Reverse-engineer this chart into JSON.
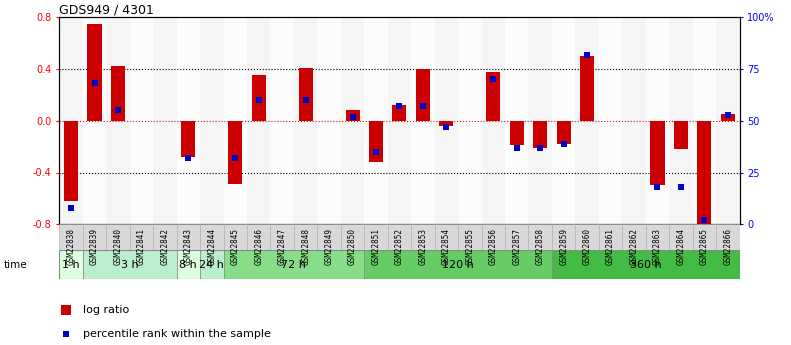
{
  "title": "GDS949 / 4301",
  "samples": [
    "GSM22838",
    "GSM22839",
    "GSM22840",
    "GSM22841",
    "GSM22842",
    "GSM22843",
    "GSM22844",
    "GSM22845",
    "GSM22846",
    "GSM22847",
    "GSM22848",
    "GSM22849",
    "GSM22850",
    "GSM22851",
    "GSM22852",
    "GSM22853",
    "GSM22854",
    "GSM22855",
    "GSM22856",
    "GSM22857",
    "GSM22858",
    "GSM22859",
    "GSM22860",
    "GSM22861",
    "GSM22862",
    "GSM22863",
    "GSM22864",
    "GSM22865",
    "GSM22866"
  ],
  "log_ratio": [
    -0.62,
    0.75,
    0.42,
    0.0,
    0.0,
    -0.28,
    0.0,
    -0.49,
    0.35,
    0.0,
    0.41,
    0.0,
    0.08,
    -0.32,
    0.12,
    0.4,
    -0.04,
    0.0,
    0.38,
    -0.19,
    -0.21,
    -0.18,
    0.5,
    0.0,
    0.0,
    -0.5,
    -0.22,
    -0.8,
    0.05
  ],
  "percentile_rank": [
    8,
    68,
    55,
    0,
    0,
    32,
    0,
    32,
    60,
    0,
    60,
    0,
    52,
    35,
    57,
    57,
    47,
    0,
    70,
    37,
    37,
    39,
    82,
    0,
    0,
    18,
    18,
    2,
    53
  ],
  "time_groups": [
    {
      "label": "1 h",
      "start": 0,
      "end": 1,
      "color": "#ddffdd"
    },
    {
      "label": "3 h",
      "start": 1,
      "end": 5,
      "color": "#bbeecc"
    },
    {
      "label": "8 h",
      "start": 5,
      "end": 6,
      "color": "#ddffdd"
    },
    {
      "label": "24 h",
      "start": 6,
      "end": 7,
      "color": "#bbeecc"
    },
    {
      "label": "72 h",
      "start": 7,
      "end": 13,
      "color": "#88dd88"
    },
    {
      "label": "120 h",
      "start": 13,
      "end": 21,
      "color": "#66cc66"
    },
    {
      "label": "360 h",
      "start": 21,
      "end": 29,
      "color": "#44bb44"
    }
  ],
  "bar_color": "#cc0000",
  "dot_color": "#0000cc",
  "ylim": [
    -0.8,
    0.8
  ],
  "y2lim": [
    0,
    100
  ],
  "yticks": [
    -0.8,
    -0.4,
    0.0,
    0.4,
    0.8
  ],
  "y2ticks": [
    0,
    25,
    50,
    75,
    100
  ],
  "hline_dotted_vals": [
    -0.4,
    0.4
  ],
  "hline_red_val": 0.0
}
